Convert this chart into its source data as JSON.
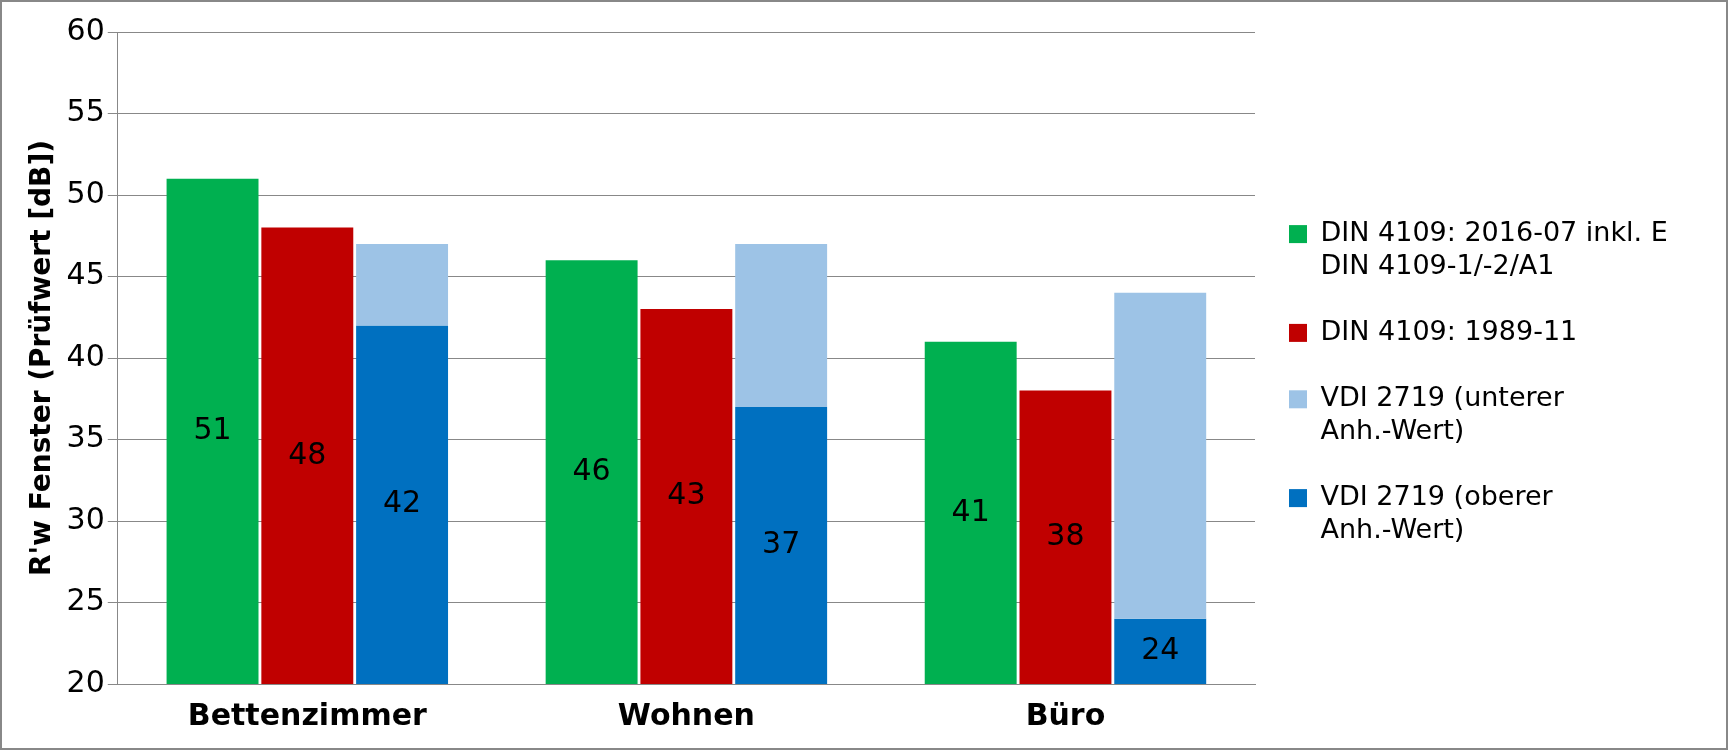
{
  "chart_data": {
    "type": "bar",
    "ylabel": "R'w Fenster (Prüfwert [dB])",
    "categories": [
      "Bettenzimmer",
      "Wohnen",
      "Büro"
    ],
    "series": [
      {
        "name": "DIN 4109: 2016-07 inkl. E DIN 4109-1/-2/A1",
        "color": "#00b050",
        "values": [
          51,
          46,
          41
        ],
        "value_labels": [
          "51",
          "46",
          "41"
        ]
      },
      {
        "name": "DIN 4109: 1989-11",
        "color": "#c00000",
        "values": [
          48,
          43,
          38
        ],
        "value_labels": [
          "48",
          "43",
          "38"
        ]
      },
      {
        "name": "VDI 2719 (unterer Anh.-Wert)",
        "color": "#9dc3e6",
        "values": [
          5,
          10,
          20
        ],
        "base": [
          42,
          37,
          24
        ]
      },
      {
        "name": "VDI 2719 (oberer Anh.-Wert)",
        "color": "#0070c0",
        "values": [
          42,
          37,
          24
        ],
        "value_labels": [
          "42",
          "37",
          "24"
        ]
      }
    ],
    "ylim": [
      20,
      60
    ],
    "yticks": [
      20,
      25,
      30,
      35,
      40,
      45,
      50,
      55,
      60
    ],
    "grid": "y",
    "legend": "right"
  }
}
